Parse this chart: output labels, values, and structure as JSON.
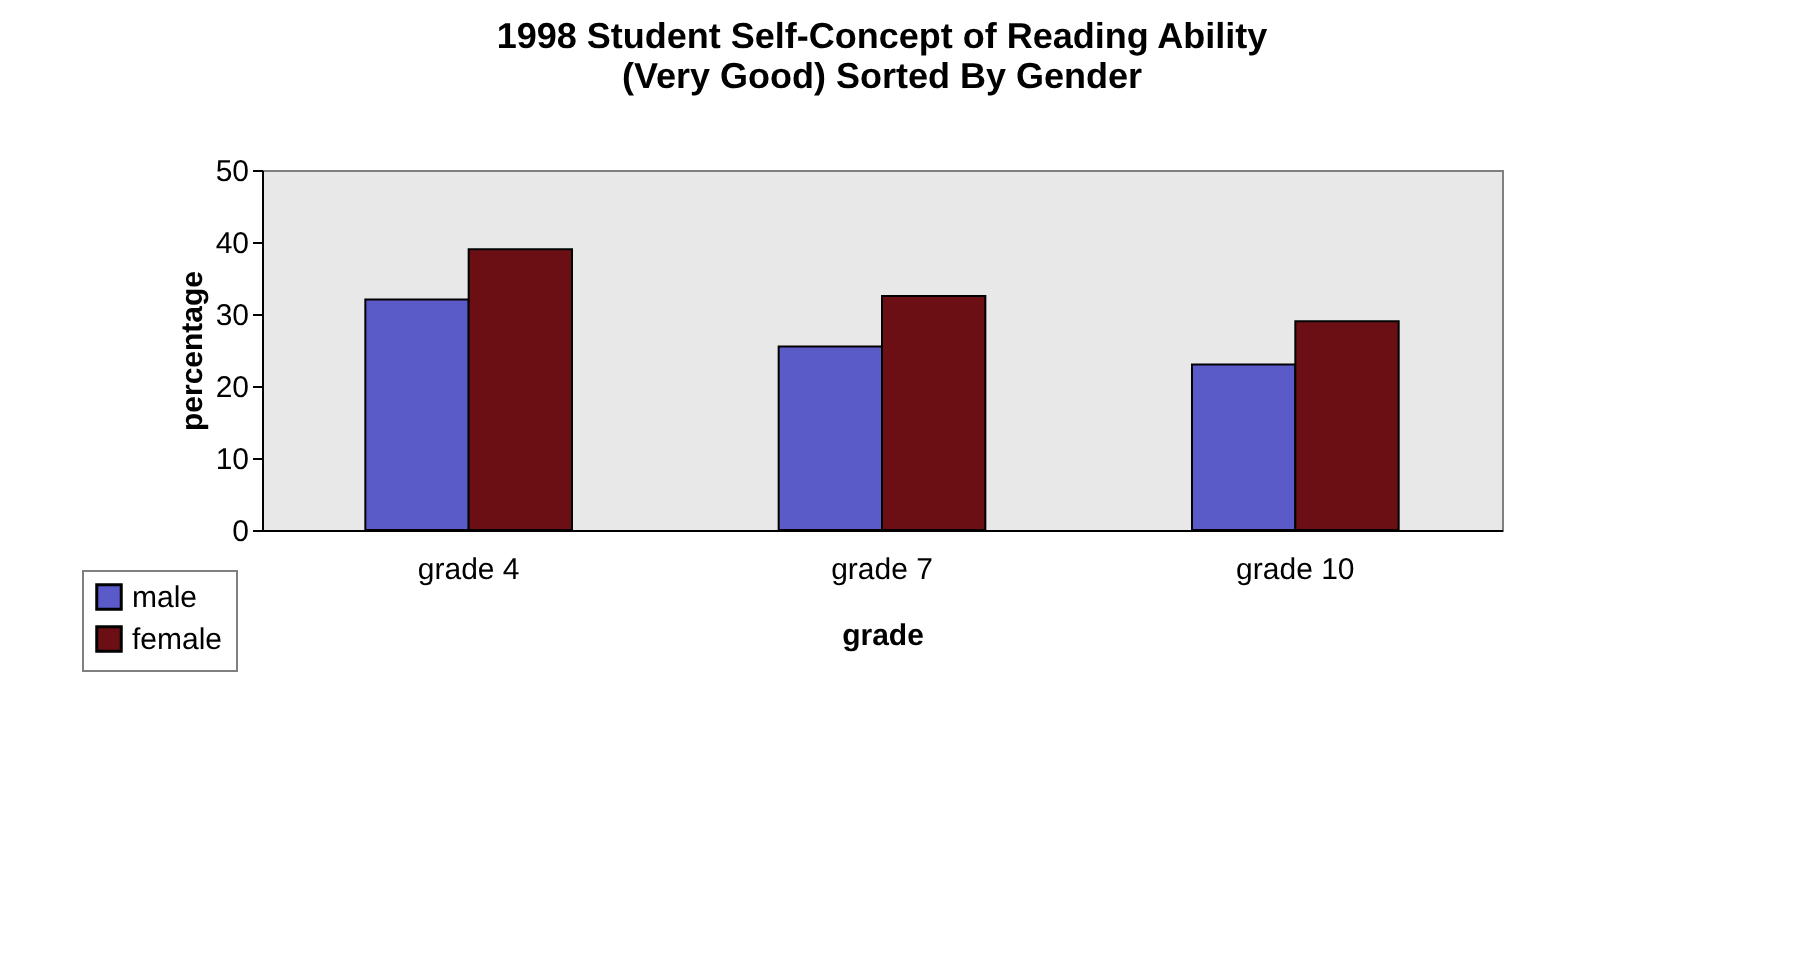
{
  "chart_data": {
    "type": "bar",
    "title": [
      "1998 Student Self-Concept of Reading Ability",
      "(Very Good) Sorted By Gender"
    ],
    "xlabel": "grade",
    "ylabel": "percentage",
    "categories": [
      "grade 4",
      "grade 7",
      "grade 10"
    ],
    "series": [
      {
        "name": "male",
        "color": "#5a5ac8",
        "values": [
          32,
          25.5,
          23
        ]
      },
      {
        "name": "female",
        "color": "#6b0f14",
        "values": [
          39,
          32.5,
          29
        ]
      }
    ],
    "ylim": [
      0,
      50
    ],
    "yticks": [
      0,
      10,
      20,
      30,
      40,
      50
    ],
    "grid": false,
    "legend": "bottom left"
  }
}
